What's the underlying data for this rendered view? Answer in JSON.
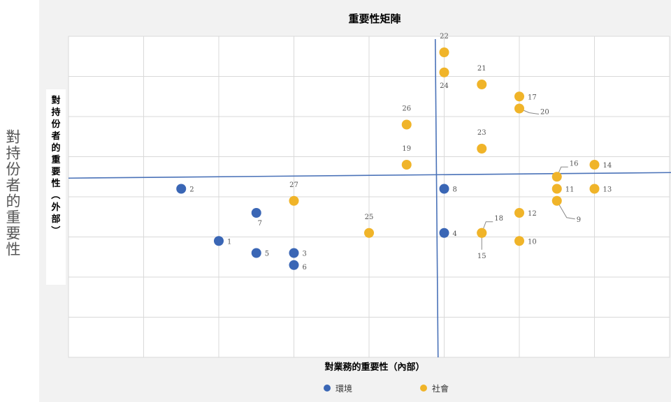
{
  "outer_label": "對持份者的重要性",
  "chart_data": {
    "type": "scatter",
    "title": "重要性矩陣",
    "xlabel": "對業務的重要性（內部）",
    "ylabel": "對持份者的重要性（外部）",
    "xlim": [
      1,
      9
    ],
    "ylim": [
      0,
      8
    ],
    "grid": true,
    "quadrant_lines": {
      "x": 5.9,
      "y": 4.5
    },
    "legend_position": "bottom-center",
    "series": [
      {
        "name": "環境",
        "color": "#3a66b5",
        "points": [
          {
            "label": "1",
            "x": 3.0,
            "y": 2.9
          },
          {
            "label": "2",
            "x": 2.5,
            "y": 4.2
          },
          {
            "label": "3",
            "x": 4.0,
            "y": 2.6
          },
          {
            "label": "4",
            "x": 6.0,
            "y": 3.1
          },
          {
            "label": "5",
            "x": 3.5,
            "y": 2.6
          },
          {
            "label": "6",
            "x": 4.0,
            "y": 2.3
          },
          {
            "label": "7",
            "x": 3.5,
            "y": 3.6
          },
          {
            "label": "8",
            "x": 6.0,
            "y": 4.2
          }
        ]
      },
      {
        "name": "社會",
        "color": "#f0b429",
        "points": [
          {
            "label": "9",
            "x": 7.5,
            "y": 3.9
          },
          {
            "label": "10",
            "x": 7.0,
            "y": 2.9
          },
          {
            "label": "11",
            "x": 7.5,
            "y": 4.2
          },
          {
            "label": "12",
            "x": 7.0,
            "y": 3.6
          },
          {
            "label": "13",
            "x": 8.0,
            "y": 4.2
          },
          {
            "label": "14",
            "x": 8.0,
            "y": 4.8
          },
          {
            "label": "15",
            "x": 6.5,
            "y": 3.1
          },
          {
            "label": "16",
            "x": 7.5,
            "y": 4.5
          },
          {
            "label": "17",
            "x": 7.0,
            "y": 6.5
          },
          {
            "label": "18",
            "x": 6.5,
            "y": 3.1
          },
          {
            "label": "19",
            "x": 5.5,
            "y": 4.8
          },
          {
            "label": "20",
            "x": 7.0,
            "y": 6.2
          },
          {
            "label": "21",
            "x": 6.5,
            "y": 6.8
          },
          {
            "label": "22",
            "x": 6.0,
            "y": 7.6
          },
          {
            "label": "23",
            "x": 6.5,
            "y": 5.2
          },
          {
            "label": "24",
            "x": 6.0,
            "y": 7.1
          },
          {
            "label": "25",
            "x": 5.0,
            "y": 3.1
          },
          {
            "label": "26",
            "x": 5.5,
            "y": 5.8
          },
          {
            "label": "27",
            "x": 4.0,
            "y": 3.9
          }
        ]
      }
    ]
  }
}
